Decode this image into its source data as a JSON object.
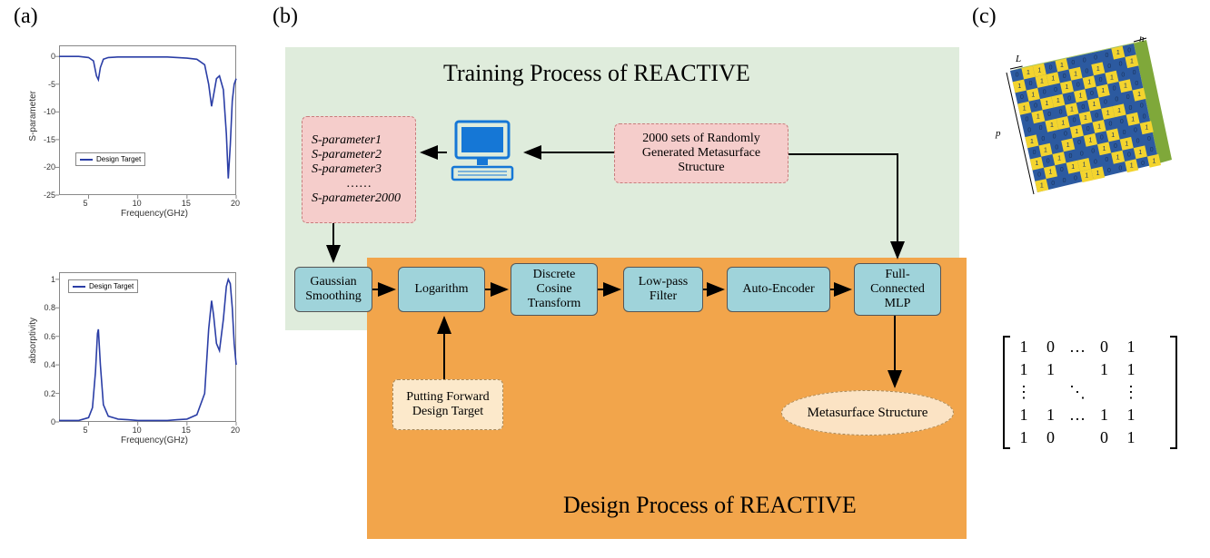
{
  "labels": {
    "a": "(a)",
    "b": "(b)",
    "c": "(c)"
  },
  "chart_a_top": {
    "type": "line",
    "xlabel": "Frequency(GHz)",
    "ylabel": "S-parameter",
    "xlim": [
      2,
      20
    ],
    "ylim": [
      -25,
      2
    ],
    "xticks": [
      5,
      10,
      15,
      20
    ],
    "yticks": [
      -25,
      -20,
      -15,
      -10,
      -5,
      0
    ],
    "legend_label": "Design Target",
    "line_color": "#2b3ea6",
    "line_width": 1.6,
    "background_color": "#ffffff",
    "points": [
      [
        2,
        0
      ],
      [
        3,
        0
      ],
      [
        4,
        0
      ],
      [
        5,
        -0.2
      ],
      [
        5.5,
        -0.8
      ],
      [
        5.8,
        -3.5
      ],
      [
        6.0,
        -4.2
      ],
      [
        6.2,
        -2.0
      ],
      [
        6.5,
        -0.5
      ],
      [
        7,
        -0.2
      ],
      [
        8,
        -0.1
      ],
      [
        9,
        -0.1
      ],
      [
        10,
        -0.1
      ],
      [
        11,
        -0.1
      ],
      [
        12,
        -0.1
      ],
      [
        13,
        -0.1
      ],
      [
        14,
        -0.2
      ],
      [
        15,
        -0.3
      ],
      [
        16,
        -0.5
      ],
      [
        16.8,
        -1.5
      ],
      [
        17.2,
        -5
      ],
      [
        17.5,
        -9
      ],
      [
        17.7,
        -7
      ],
      [
        18.0,
        -4
      ],
      [
        18.3,
        -3.5
      ],
      [
        18.7,
        -6
      ],
      [
        19.0,
        -14
      ],
      [
        19.2,
        -22
      ],
      [
        19.4,
        -16
      ],
      [
        19.6,
        -8
      ],
      [
        19.8,
        -5
      ],
      [
        20,
        -4
      ]
    ]
  },
  "chart_a_bottom": {
    "type": "line",
    "xlabel": "Frequency(GHz)",
    "ylabel": "absorptivity",
    "xlim": [
      2,
      20
    ],
    "ylim": [
      0.0,
      1.05
    ],
    "xticks": [
      5,
      10,
      15,
      20
    ],
    "yticks": [
      0.0,
      0.2,
      0.4,
      0.6,
      0.8,
      1.0
    ],
    "legend_label": "Design Target",
    "line_color": "#2b3ea6",
    "line_width": 1.6,
    "background_color": "#ffffff",
    "points": [
      [
        2,
        0.01
      ],
      [
        3,
        0.01
      ],
      [
        4,
        0.01
      ],
      [
        5,
        0.03
      ],
      [
        5.4,
        0.1
      ],
      [
        5.7,
        0.35
      ],
      [
        5.9,
        0.62
      ],
      [
        6.0,
        0.65
      ],
      [
        6.2,
        0.4
      ],
      [
        6.5,
        0.12
      ],
      [
        7,
        0.04
      ],
      [
        8,
        0.02
      ],
      [
        9,
        0.015
      ],
      [
        10,
        0.01
      ],
      [
        11,
        0.01
      ],
      [
        12,
        0.01
      ],
      [
        13,
        0.01
      ],
      [
        14,
        0.015
      ],
      [
        15,
        0.02
      ],
      [
        16,
        0.05
      ],
      [
        16.8,
        0.2
      ],
      [
        17.2,
        0.65
      ],
      [
        17.5,
        0.85
      ],
      [
        17.7,
        0.75
      ],
      [
        18.0,
        0.55
      ],
      [
        18.3,
        0.5
      ],
      [
        18.7,
        0.72
      ],
      [
        19.0,
        0.95
      ],
      [
        19.2,
        1.0
      ],
      [
        19.4,
        0.97
      ],
      [
        19.6,
        0.8
      ],
      [
        19.8,
        0.55
      ],
      [
        20,
        0.4
      ]
    ]
  },
  "flow": {
    "train_title": "Training Process of REACTIVE",
    "design_title": "Design Process of REACTIVE",
    "sparam_lines": [
      "S-parameter1",
      "S-parameter2",
      "S-parameter3",
      "……",
      "S-parameter2000"
    ],
    "dataset_label": "2000 sets of Randomly\nGenerated Metasurface\nStructure",
    "blue_nodes": [
      "Gaussian\nSmoothing",
      "Logarithm",
      "Discrete\nCosine\nTransform",
      "Low-pass\nFilter",
      "Auto-Encoder",
      "Full-\nConnected\nMLP"
    ],
    "design_input": "Putting Forward\nDesign Target",
    "design_output": "Metasurface Structure",
    "colors": {
      "train_bg": "#dfecdc",
      "design_bg": "#f2a54b",
      "blue_box": "#9fd3da",
      "pink_box": "#f5cdcb",
      "cream_box": "#fce9cb",
      "arrow": "#000000",
      "computer": "#1577d6"
    },
    "arrow_width": 2
  },
  "panel_c": {
    "matrix_rows": [
      [
        "1",
        "0",
        "…",
        "0",
        "1"
      ],
      [
        "1",
        "1",
        "",
        "1",
        "1"
      ],
      [
        "⋮",
        "",
        "⋱",
        "",
        "⋮"
      ],
      [
        "1",
        "1",
        "…",
        "1",
        "1"
      ],
      [
        "1",
        "0",
        "",
        "0",
        "1"
      ]
    ],
    "metasurface_colors": {
      "substrate": "#2c5aa0",
      "cell_on": "#f3d42e",
      "cell_off_text": "#1a3560"
    },
    "dim_labels": [
      "h",
      "L",
      "p"
    ],
    "grid": [
      [
        0,
        1,
        1,
        0,
        1,
        0,
        0,
        0,
        0,
        1,
        0
      ],
      [
        1,
        0,
        1,
        1,
        0,
        1,
        0,
        1,
        0,
        0,
        1
      ],
      [
        0,
        1,
        0,
        0,
        1,
        0,
        1,
        0,
        1,
        0,
        0
      ],
      [
        1,
        0,
        1,
        1,
        0,
        1,
        0,
        1,
        0,
        1,
        0
      ],
      [
        0,
        1,
        0,
        0,
        1,
        0,
        1,
        0,
        0,
        0,
        1
      ],
      [
        0,
        0,
        1,
        1,
        0,
        1,
        0,
        1,
        1,
        0,
        0
      ],
      [
        1,
        0,
        0,
        0,
        1,
        0,
        1,
        0,
        0,
        1,
        0
      ],
      [
        0,
        1,
        0,
        1,
        0,
        1,
        0,
        1,
        0,
        0,
        1
      ],
      [
        1,
        0,
        1,
        0,
        0,
        0,
        1,
        0,
        1,
        0,
        0
      ],
      [
        0,
        1,
        0,
        1,
        1,
        0,
        0,
        1,
        0,
        1,
        0
      ],
      [
        1,
        0,
        0,
        0,
        1,
        1,
        0,
        0,
        1,
        0,
        1
      ]
    ]
  }
}
